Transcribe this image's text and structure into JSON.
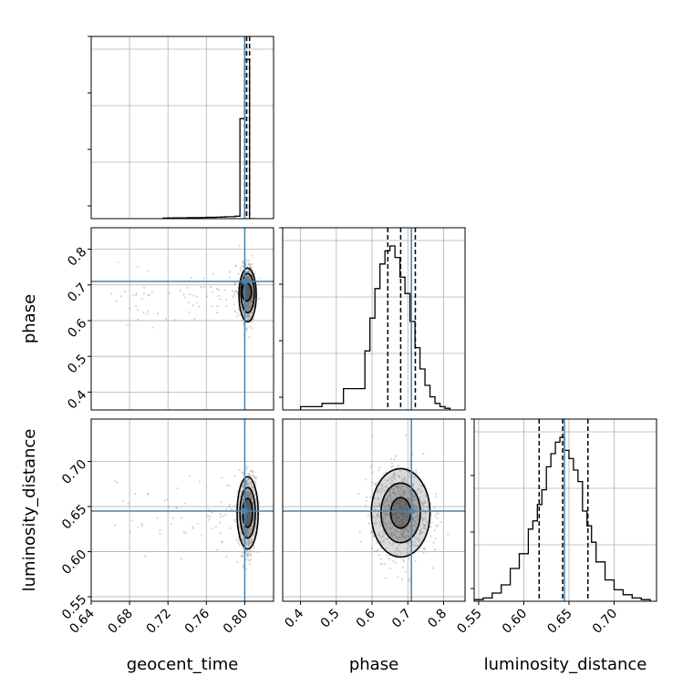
{
  "chart_data": {
    "type": "corner",
    "parameters": [
      "geocent_time",
      "phase",
      "luminosity_distance"
    ],
    "truths": {
      "geocent_time": 0.8,
      "phase": 0.71,
      "luminosity_distance": 0.645
    },
    "quantiles": {
      "geocent_time": [
        0.8,
        0.802,
        0.805
      ],
      "phase": [
        0.644,
        0.68,
        0.721
      ],
      "luminosity_distance": [
        0.617,
        0.643,
        0.671
      ]
    },
    "ranges": {
      "geocent_time": [
        0.64,
        0.83
      ],
      "phase": [
        0.35,
        0.86
      ],
      "luminosity_distance": [
        0.545,
        0.747
      ]
    },
    "tick_labels": {
      "geocent_time": [
        "0.64",
        "0.68",
        "0.72",
        "0.76",
        "0.80"
      ],
      "phase": [
        "0.4",
        "0.5",
        "0.6",
        "0.7",
        "0.8"
      ],
      "luminosity_distance": [
        "0.55",
        "0.60",
        "0.65",
        "0.70"
      ]
    },
    "histograms": {
      "geocent_time": {
        "edges": [
          0.715,
          0.72,
          0.725,
          0.73,
          0.735,
          0.74,
          0.745,
          0.75,
          0.755,
          0.76,
          0.765,
          0.77,
          0.775,
          0.78,
          0.785,
          0.79,
          0.795,
          0.8,
          0.805,
          0.81
        ],
        "counts": [
          0.003,
          0.004,
          0.005,
          0.005,
          0.005,
          0.006,
          0.006,
          0.006,
          0.007,
          0.008,
          0.008,
          0.009,
          0.01,
          0.012,
          0.012,
          0.015,
          0.61,
          0.97,
          0.0
        ]
      },
      "phase": {
        "edges": [
          0.4,
          0.46,
          0.52,
          0.58,
          0.594,
          0.608,
          0.622,
          0.636,
          0.65,
          0.664,
          0.678,
          0.692,
          0.706,
          0.72,
          0.734,
          0.748,
          0.762,
          0.776,
          0.79,
          0.804,
          0.818
        ],
        "counts": [
          0.02,
          0.04,
          0.13,
          0.36,
          0.56,
          0.74,
          0.89,
          0.97,
          1.0,
          0.93,
          0.81,
          0.71,
          0.54,
          0.38,
          0.25,
          0.15,
          0.08,
          0.04,
          0.02,
          0.01
        ]
      },
      "luminosity_distance": {
        "edges": [
          0.545,
          0.555,
          0.565,
          0.575,
          0.585,
          0.595,
          0.605,
          0.61,
          0.615,
          0.62,
          0.625,
          0.63,
          0.635,
          0.64,
          0.645,
          0.65,
          0.655,
          0.66,
          0.665,
          0.67,
          0.675,
          0.68,
          0.69,
          0.7,
          0.71,
          0.72,
          0.73,
          0.74
        ],
        "counts": [
          0.01,
          0.02,
          0.05,
          0.1,
          0.2,
          0.29,
          0.44,
          0.49,
          0.59,
          0.68,
          0.82,
          0.9,
          0.97,
          1.0,
          0.92,
          0.87,
          0.8,
          0.73,
          0.55,
          0.46,
          0.36,
          0.24,
          0.13,
          0.07,
          0.04,
          0.02,
          0.01
        ]
      }
    },
    "contours": {
      "phase_vs_geocent_time": [
        {
          "cx": 0.802,
          "cy": 0.68,
          "rx": 0.005,
          "ry": 0.025
        },
        {
          "cx": 0.803,
          "cy": 0.677,
          "rx": 0.007,
          "ry": 0.055
        },
        {
          "cx": 0.803,
          "cy": 0.672,
          "rx": 0.009,
          "ry": 0.075
        }
      ],
      "luminosity_distance_vs_geocent_time": [
        {
          "cx": 0.803,
          "cy": 0.643,
          "rx": 0.005,
          "ry": 0.016
        },
        {
          "cx": 0.803,
          "cy": 0.643,
          "rx": 0.008,
          "ry": 0.028
        },
        {
          "cx": 0.803,
          "cy": 0.643,
          "rx": 0.011,
          "ry": 0.04
        }
      ],
      "luminosity_distance_vs_phase": [
        {
          "cx": 0.68,
          "cy": 0.643,
          "rx": 0.028,
          "ry": 0.017
        },
        {
          "cx": 0.68,
          "cy": 0.643,
          "rx": 0.055,
          "ry": 0.033
        },
        {
          "cx": 0.68,
          "cy": 0.643,
          "rx": 0.082,
          "ry": 0.049
        }
      ]
    },
    "xlabel": [
      "geocent_time",
      "phase",
      "luminosity_distance"
    ],
    "ylabel": [
      "phase",
      "luminosity_distance"
    ],
    "grid": true,
    "colors": {
      "truth": "#4682b4",
      "hist": "#000000",
      "samples": "#888888",
      "grid": "#b0b0b0"
    }
  }
}
